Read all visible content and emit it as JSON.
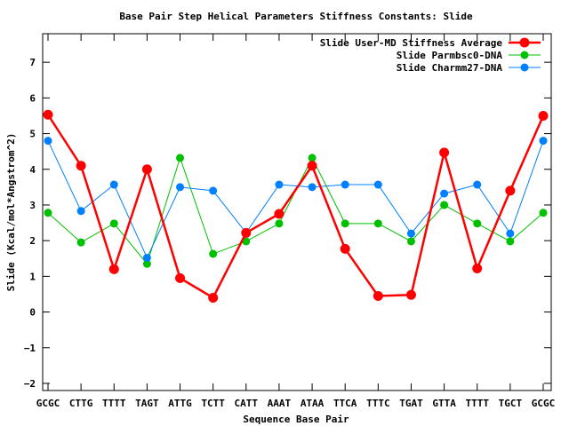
{
  "chart_data": {
    "type": "line",
    "title": "Base Pair Step Helical Parameters Stiffness Constants: Slide",
    "xlabel": "Sequence Base Pair",
    "ylabel": "Slide (Kcal/mol*Angstrom^2)",
    "ylim": [
      -2.2,
      7.8
    ],
    "yticks": [
      -2,
      -1,
      0,
      1,
      2,
      3,
      4,
      5,
      6,
      7
    ],
    "categories": [
      "GCGC",
      "CTTG",
      "TTTT",
      "TAGT",
      "ATTG",
      "TCTT",
      "CATT",
      "AAAT",
      "ATAA",
      "TTCA",
      "TTTC",
      "TGAT",
      "GTTA",
      "TTTT",
      "TGCT",
      "GCGC"
    ],
    "legend_position": "top-right",
    "grid": false,
    "series": [
      {
        "name": "Slide User-MD Stiffness Average",
        "color": "#ff0000",
        "values": [
          5.53,
          4.1,
          1.2,
          4.0,
          0.95,
          0.4,
          2.22,
          2.75,
          4.1,
          1.77,
          0.45,
          0.48,
          4.47,
          1.22,
          3.4,
          5.5
        ]
      },
      {
        "name": "Slide Parmbsc0-DNA",
        "color": "#00c000",
        "values": [
          2.78,
          1.95,
          2.48,
          1.35,
          4.32,
          1.63,
          1.98,
          2.48,
          4.32,
          2.48,
          2.48,
          1.98,
          3.0,
          2.48,
          1.98,
          2.78
        ]
      },
      {
        "name": "Slide Charmm27-DNA",
        "color": "#0080ff",
        "values": [
          4.8,
          2.83,
          3.57,
          1.52,
          3.5,
          3.4,
          2.22,
          3.57,
          3.5,
          3.57,
          3.57,
          2.2,
          3.32,
          3.57,
          2.2,
          4.8
        ]
      }
    ]
  }
}
